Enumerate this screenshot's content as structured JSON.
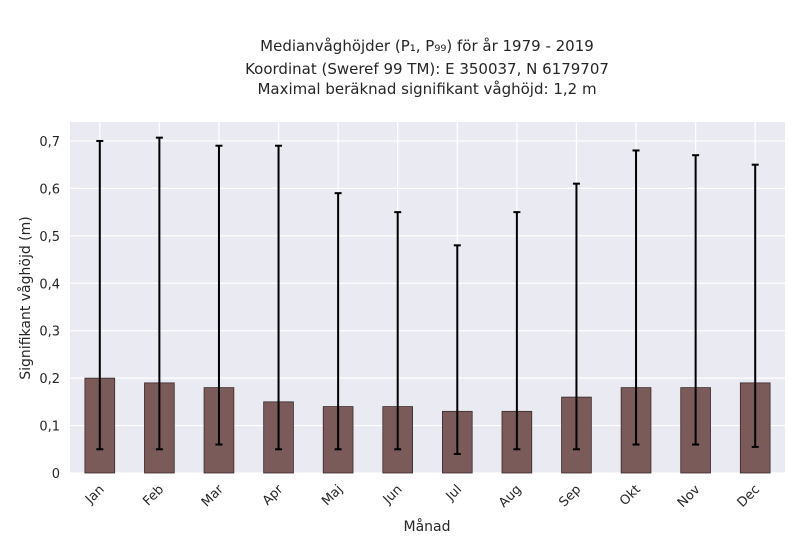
{
  "chart_data": {
    "type": "bar",
    "title_lines": [
      "Medianvåghöjder (P₁, P₉₉) för år 1979 - 2019",
      "Koordinat (Sweref 99 TM): E 350037, N 6179707",
      "Maximal beräknad signifikant våghöjd: 1,2 m"
    ],
    "xlabel": "Månad",
    "ylabel": "Signifikant våghöjd (m)",
    "categories": [
      "Jan",
      "Feb",
      "Mar",
      "Apr",
      "Maj",
      "Jun",
      "Jul",
      "Aug",
      "Sep",
      "Okt",
      "Nov",
      "Dec"
    ],
    "values": [
      0.2,
      0.19,
      0.18,
      0.15,
      0.14,
      0.14,
      0.13,
      0.13,
      0.16,
      0.18,
      0.18,
      0.19
    ],
    "p1": [
      0.05,
      0.05,
      0.06,
      0.05,
      0.05,
      0.05,
      0.04,
      0.05,
      0.05,
      0.06,
      0.06,
      0.055
    ],
    "p99": [
      0.7,
      0.707,
      0.69,
      0.69,
      0.59,
      0.55,
      0.48,
      0.55,
      0.61,
      0.68,
      0.67,
      0.65
    ],
    "ylim": [
      0,
      0.74
    ],
    "yticks": [
      0,
      0.1,
      0.2,
      0.3,
      0.4,
      0.5,
      0.6,
      0.7
    ],
    "ytick_labels": [
      "0",
      "0,1",
      "0,2",
      "0,3",
      "0,4",
      "0,5",
      "0,6",
      "0,7"
    ],
    "grid": true,
    "colors": {
      "bar": "#7b5a5a",
      "bar_edge": "#3a2a2a",
      "errorbar": "#000000",
      "plot_background": "#eaeaf2",
      "grid": "#ffffff"
    }
  }
}
